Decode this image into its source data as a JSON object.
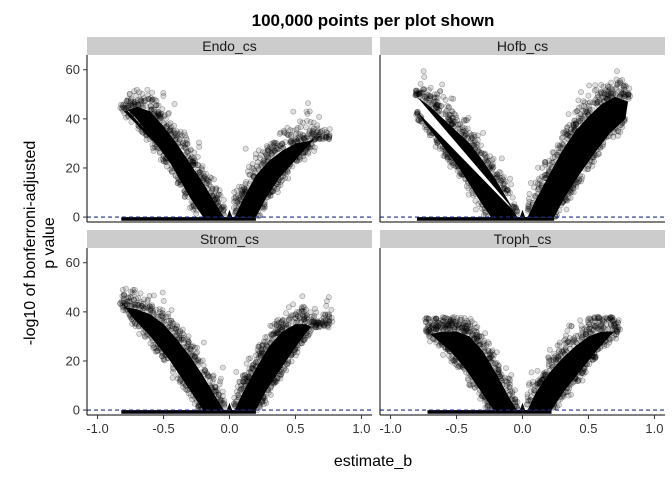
{
  "chart_data": {
    "type": "scatter",
    "title": "100,000 points per plot shown",
    "xlabel": "estimate_b",
    "ylabel_line1": "-log10 of bonferroni-adjusted",
    "ylabel_line2": "p value",
    "xlim": [
      -1.08,
      1.08
    ],
    "ylim": [
      -2,
      66
    ],
    "x_ticks": [
      -1.0,
      -0.5,
      0.0,
      0.5,
      1.0
    ],
    "x_tick_labels": [
      "-1.0",
      "-0.5",
      "0.0",
      "0.5",
      "1.0"
    ],
    "y_ticks": [
      0,
      20,
      40,
      60
    ],
    "y_tick_labels": [
      "0",
      "20",
      "40",
      "60"
    ],
    "reference_line": {
      "y": 0,
      "style": "dashed",
      "color": "#1f2f8f"
    },
    "point_color": "#000000",
    "grid": false,
    "facets": [
      {
        "name": "Endo_cs",
        "points_shown": 100000,
        "x_range": [
          -0.82,
          0.76
        ],
        "y_max_observed": 52,
        "left_edge": [
          [
            -0.2,
            0
          ],
          [
            -0.3,
            8
          ],
          [
            -0.45,
            22
          ],
          [
            -0.6,
            33
          ],
          [
            -0.72,
            41
          ],
          [
            -0.82,
            46
          ]
        ],
        "right_edge": [
          [
            0.2,
            0
          ],
          [
            0.28,
            8
          ],
          [
            0.38,
            16
          ],
          [
            0.48,
            22
          ],
          [
            0.58,
            28
          ],
          [
            0.65,
            32
          ]
        ],
        "dense_top_left": [
          [
            -0.8,
            46
          ],
          [
            -0.7,
            48
          ],
          [
            -0.6,
            46
          ],
          [
            -0.5,
            40
          ],
          [
            -0.4,
            33
          ],
          [
            -0.3,
            25
          ],
          [
            -0.2,
            17
          ],
          [
            -0.1,
            8
          ],
          [
            -0.03,
            2
          ]
        ],
        "dense_top_right": [
          [
            0.03,
            2
          ],
          [
            0.1,
            10
          ],
          [
            0.2,
            20
          ],
          [
            0.3,
            26
          ],
          [
            0.4,
            30
          ],
          [
            0.5,
            33
          ],
          [
            0.6,
            34
          ]
        ]
      },
      {
        "name": "Hofb_cs",
        "points_shown": 100000,
        "x_range": [
          -0.82,
          0.82
        ],
        "y_max_observed": 61,
        "left_edge": [
          [
            -0.24,
            0
          ],
          [
            -0.34,
            8
          ],
          [
            -0.48,
            20
          ],
          [
            -0.62,
            30
          ],
          [
            -0.74,
            38
          ],
          [
            -0.8,
            43
          ]
        ],
        "right_edge": [
          [
            0.24,
            0
          ],
          [
            0.32,
            8
          ],
          [
            0.44,
            18
          ],
          [
            0.56,
            27
          ],
          [
            0.66,
            34
          ],
          [
            0.78,
            40
          ]
        ],
        "dense_top_left": [
          [
            -0.8,
            52
          ],
          [
            -0.7,
            48
          ],
          [
            -0.6,
            43
          ],
          [
            -0.5,
            38
          ],
          [
            -0.4,
            33
          ],
          [
            -0.3,
            26
          ],
          [
            -0.2,
            18
          ],
          [
            -0.1,
            9
          ],
          [
            -0.03,
            2
          ]
        ],
        "dense_top_right": [
          [
            0.03,
            2
          ],
          [
            0.1,
            10
          ],
          [
            0.2,
            20
          ],
          [
            0.3,
            30
          ],
          [
            0.4,
            38
          ],
          [
            0.5,
            44
          ],
          [
            0.6,
            49
          ],
          [
            0.7,
            52
          ],
          [
            0.8,
            50
          ]
        ]
      },
      {
        "name": "Strom_cs",
        "points_shown": 100000,
        "x_range": [
          -0.82,
          0.78
        ],
        "y_max_observed": 51,
        "left_edge": [
          [
            -0.2,
            0
          ],
          [
            -0.3,
            8
          ],
          [
            -0.45,
            20
          ],
          [
            -0.6,
            30
          ],
          [
            -0.74,
            38
          ],
          [
            -0.82,
            44
          ]
        ],
        "right_edge": [
          [
            0.2,
            0
          ],
          [
            0.28,
            8
          ],
          [
            0.38,
            16
          ],
          [
            0.48,
            24
          ],
          [
            0.56,
            30
          ],
          [
            0.62,
            34
          ]
        ],
        "dense_top_left": [
          [
            -0.8,
            45
          ],
          [
            -0.7,
            44
          ],
          [
            -0.6,
            42
          ],
          [
            -0.5,
            38
          ],
          [
            -0.4,
            32
          ],
          [
            -0.3,
            25
          ],
          [
            -0.2,
            17
          ],
          [
            -0.1,
            8
          ],
          [
            -0.03,
            2
          ]
        ],
        "dense_top_right": [
          [
            0.03,
            2
          ],
          [
            0.1,
            10
          ],
          [
            0.2,
            20
          ],
          [
            0.3,
            29
          ],
          [
            0.4,
            35
          ],
          [
            0.5,
            38
          ],
          [
            0.58,
            38
          ],
          [
            0.65,
            36
          ]
        ]
      },
      {
        "name": "Troph_cs",
        "points_shown": 100000,
        "x_range": [
          -0.74,
          0.74
        ],
        "y_max_observed": 38,
        "left_edge": [
          [
            -0.22,
            0
          ],
          [
            -0.32,
            8
          ],
          [
            -0.45,
            18
          ],
          [
            -0.58,
            26
          ],
          [
            -0.66,
            30
          ],
          [
            -0.72,
            33
          ]
        ],
        "right_edge": [
          [
            0.22,
            0
          ],
          [
            0.32,
            8
          ],
          [
            0.44,
            16
          ],
          [
            0.56,
            24
          ],
          [
            0.66,
            30
          ],
          [
            0.72,
            33
          ]
        ],
        "dense_top_left": [
          [
            -0.7,
            34
          ],
          [
            -0.6,
            35
          ],
          [
            -0.5,
            35
          ],
          [
            -0.4,
            33
          ],
          [
            -0.3,
            27
          ],
          [
            -0.2,
            18
          ],
          [
            -0.1,
            8
          ],
          [
            -0.03,
            2
          ]
        ],
        "dense_top_right": [
          [
            0.03,
            2
          ],
          [
            0.1,
            10
          ],
          [
            0.2,
            18
          ],
          [
            0.3,
            24
          ],
          [
            0.4,
            29
          ],
          [
            0.5,
            33
          ],
          [
            0.6,
            35
          ],
          [
            0.7,
            35
          ]
        ]
      }
    ]
  }
}
